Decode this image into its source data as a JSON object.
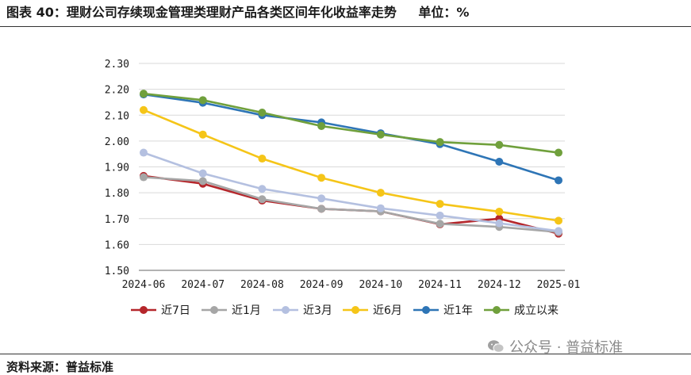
{
  "header": {
    "figure_label": "图表 40：理财公司存续现金管理类理财产品各类区间年化收益率走势",
    "unit_label": "单位：%"
  },
  "footer": {
    "source": "资料来源：普益标准",
    "watermark": "公众号 · 普益标准"
  },
  "chart_data": {
    "type": "line",
    "title": "",
    "xlabel": "",
    "ylabel": "",
    "categories": [
      "2024-06",
      "2024-07",
      "2024-08",
      "2024-09",
      "2024-10",
      "2024-11",
      "2024-12",
      "2025-01"
    ],
    "ylim": [
      1.5,
      2.3
    ],
    "yticks": [
      "1.50",
      "1.60",
      "1.70",
      "1.80",
      "1.90",
      "2.00",
      "2.10",
      "2.20",
      "2.30"
    ],
    "grid": true,
    "legend_position": "bottom",
    "series": [
      {
        "name": "近7日",
        "color": "#b5262b",
        "values": [
          1.865,
          1.835,
          1.77,
          1.738,
          1.728,
          1.678,
          1.7,
          1.642
        ]
      },
      {
        "name": "近1月",
        "color": "#a6a6a6",
        "values": [
          1.86,
          1.845,
          1.775,
          1.738,
          1.728,
          1.68,
          1.668,
          1.648
        ]
      },
      {
        "name": "近3月",
        "color": "#b4c0e0",
        "values": [
          1.955,
          1.875,
          1.815,
          1.778,
          1.74,
          1.712,
          1.682,
          1.652
        ]
      },
      {
        "name": "近6月",
        "color": "#f5c518",
        "values": [
          2.12,
          2.025,
          1.932,
          1.858,
          1.8,
          1.757,
          1.727,
          1.692
        ]
      },
      {
        "name": "近1年",
        "color": "#2e75b6",
        "values": [
          2.18,
          2.148,
          2.1,
          2.072,
          2.03,
          1.988,
          1.92,
          1.848
        ]
      },
      {
        "name": "成立以来",
        "color": "#70a03c",
        "values": [
          2.183,
          2.158,
          2.11,
          2.058,
          2.025,
          1.996,
          1.985,
          1.955
        ]
      }
    ]
  }
}
